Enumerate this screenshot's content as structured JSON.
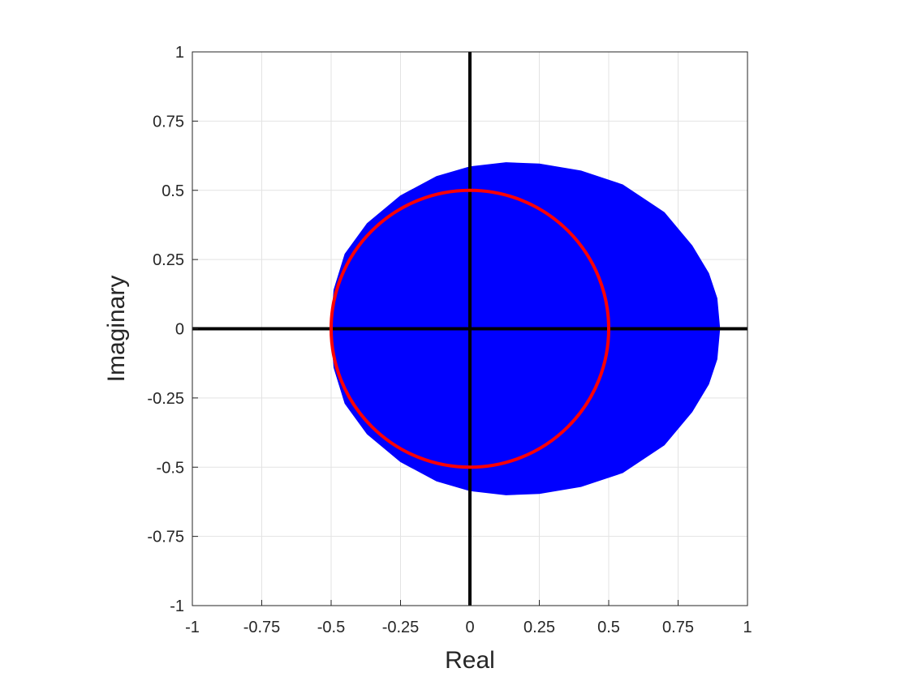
{
  "chart_data": {
    "type": "area",
    "title": "",
    "xlabel": "Real",
    "ylabel": "Imaginary",
    "xlim": [
      -1,
      1
    ],
    "ylim": [
      -1,
      1
    ],
    "xticks": [
      -1,
      -0.75,
      -0.5,
      -0.25,
      0,
      0.25,
      0.5,
      0.75,
      1
    ],
    "xtick_labels": [
      "-1",
      "-0.75",
      "-0.5",
      "-0.25",
      "0",
      "0.25",
      "0.5",
      "0.75",
      "1"
    ],
    "yticks": [
      -1,
      -0.75,
      -0.5,
      -0.25,
      0,
      0.25,
      0.5,
      0.75,
      1
    ],
    "ytick_labels": [
      "-1",
      "-0.75",
      "-0.5",
      "-0.25",
      "0",
      "0.25",
      "0.5",
      "0.75",
      "1"
    ],
    "grid": true,
    "series": [
      {
        "type": "filled-region",
        "color": "#0000ff",
        "boundary": [
          {
            "x": 0.9,
            "y": 0.0
          },
          {
            "x": 0.89,
            "y": 0.11
          },
          {
            "x": 0.86,
            "y": 0.2
          },
          {
            "x": 0.8,
            "y": 0.3
          },
          {
            "x": 0.7,
            "y": 0.42
          },
          {
            "x": 0.55,
            "y": 0.52
          },
          {
            "x": 0.4,
            "y": 0.57
          },
          {
            "x": 0.25,
            "y": 0.595
          },
          {
            "x": 0.13,
            "y": 0.6
          },
          {
            "x": 0.0,
            "y": 0.585
          },
          {
            "x": -0.12,
            "y": 0.55
          },
          {
            "x": -0.25,
            "y": 0.48
          },
          {
            "x": -0.37,
            "y": 0.38
          },
          {
            "x": -0.45,
            "y": 0.27
          },
          {
            "x": -0.49,
            "y": 0.14
          },
          {
            "x": -0.5,
            "y": 0.0
          },
          {
            "x": -0.49,
            "y": -0.14
          },
          {
            "x": -0.45,
            "y": -0.27
          },
          {
            "x": -0.37,
            "y": -0.38
          },
          {
            "x": -0.25,
            "y": -0.48
          },
          {
            "x": -0.12,
            "y": -0.55
          },
          {
            "x": 0.0,
            "y": -0.585
          },
          {
            "x": 0.13,
            "y": -0.6
          },
          {
            "x": 0.25,
            "y": -0.595
          },
          {
            "x": 0.4,
            "y": -0.57
          },
          {
            "x": 0.55,
            "y": -0.52
          },
          {
            "x": 0.7,
            "y": -0.42
          },
          {
            "x": 0.8,
            "y": -0.3
          },
          {
            "x": 0.86,
            "y": -0.2
          },
          {
            "x": 0.89,
            "y": -0.11
          }
        ]
      },
      {
        "type": "circle",
        "color": "#ff0000",
        "center": {
          "x": 0,
          "y": 0
        },
        "radius": 0.5
      },
      {
        "type": "line",
        "color": "#000000",
        "x": [
          -1,
          1
        ],
        "y": [
          0,
          0
        ]
      },
      {
        "type": "line",
        "color": "#000000",
        "x": [
          0,
          0
        ],
        "y": [
          -1,
          1
        ]
      }
    ]
  }
}
